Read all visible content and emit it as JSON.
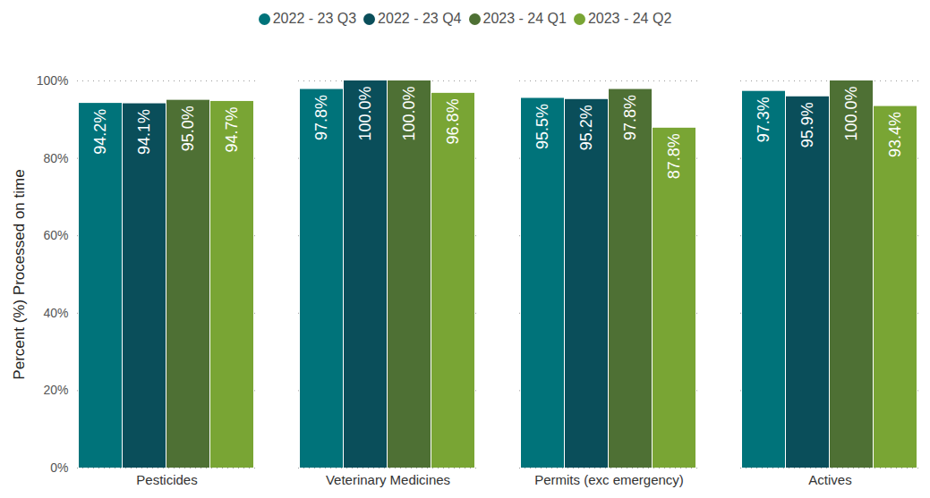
{
  "chart_data": {
    "type": "bar",
    "y_label": "Percent (%) Processed on time",
    "categories": [
      "Pesticides",
      "Veterinary Medicines",
      "Permits (exc emergency)",
      "Actives"
    ],
    "series": [
      {
        "name": "2022 - 23 Q3",
        "color": "#00737a",
        "values": [
          94.2,
          97.8,
          95.5,
          97.3
        ],
        "value_labels": [
          "94.2%",
          "97.8%",
          "95.5%",
          "97.3%"
        ]
      },
      {
        "name": "2022 - 23 Q4",
        "color": "#0a4e5a",
        "values": [
          94.1,
          100.0,
          95.2,
          95.9
        ],
        "value_labels": [
          "94.1%",
          "100.0%",
          "95.2%",
          "95.9%"
        ]
      },
      {
        "name": "2023 - 24 Q1",
        "color": "#4e7034",
        "values": [
          95.0,
          100.0,
          97.8,
          100.0
        ],
        "value_labels": [
          "95.0%",
          "100.0%",
          "97.8%",
          "100.0%"
        ]
      },
      {
        "name": "2023 - 24 Q2",
        "color": "#79a534",
        "values": [
          94.7,
          96.8,
          87.8,
          93.4
        ],
        "value_labels": [
          "94.7%",
          "96.8%",
          "87.8%",
          "93.4%"
        ]
      }
    ],
    "ylim": [
      0,
      100
    ],
    "yticks": [
      {
        "value": 0,
        "label": "0%"
      },
      {
        "value": 20,
        "label": "20%"
      },
      {
        "value": 40,
        "label": "40%"
      },
      {
        "value": 60,
        "label": "60%"
      },
      {
        "value": 80,
        "label": "80%"
      },
      {
        "value": 100,
        "label": "100%"
      }
    ],
    "grid": true,
    "legend": "top",
    "data_labels": true
  }
}
